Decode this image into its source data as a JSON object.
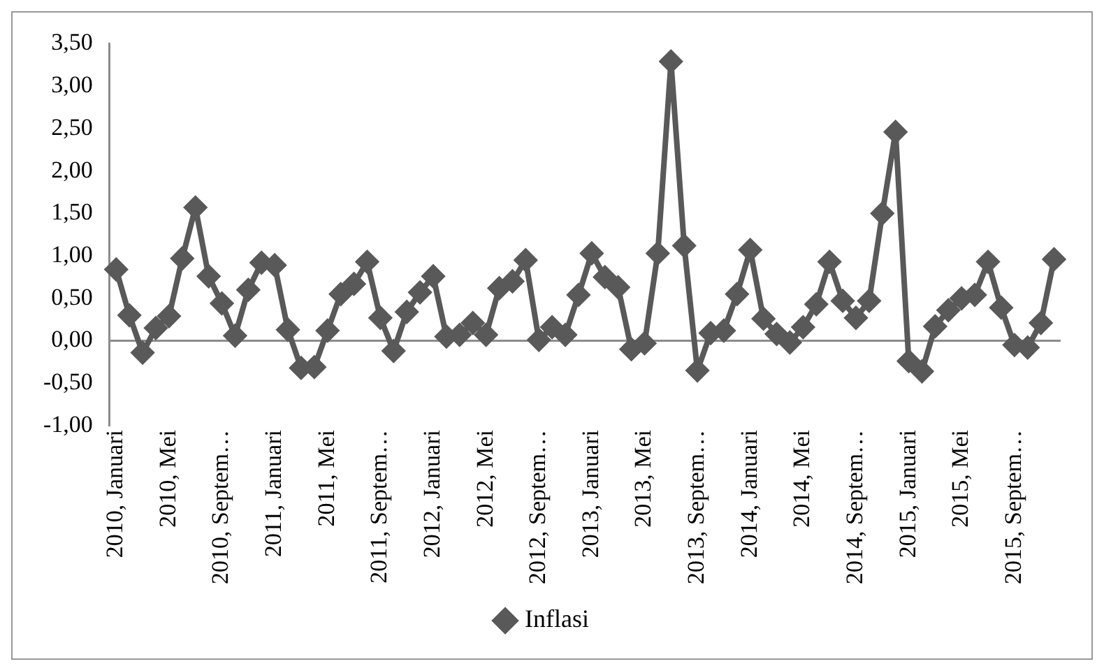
{
  "chart_data": {
    "type": "line",
    "categories": [
      "2010, Januari",
      null,
      null,
      null,
      "2010, Mei",
      null,
      null,
      null,
      "2010, Septem…",
      null,
      null,
      null,
      "2011, Januari",
      null,
      null,
      null,
      "2011, Mei",
      null,
      null,
      null,
      "2011, Septem…",
      null,
      null,
      null,
      "2012, Januari",
      null,
      null,
      null,
      "2012, Mei",
      null,
      null,
      null,
      "2012, Septem…",
      null,
      null,
      null,
      "2013, Januari",
      null,
      null,
      null,
      "2013, Mei",
      null,
      null,
      null,
      "2013, Septem…",
      null,
      null,
      null,
      "2014, Januari",
      null,
      null,
      null,
      "2014, Mei",
      null,
      null,
      null,
      "2014, Septem…",
      null,
      null,
      null,
      "2015, Januari",
      null,
      null,
      null,
      "2015, Mei",
      null,
      null,
      null,
      "2015, Septem…",
      null,
      null,
      null
    ],
    "series": [
      {
        "name": "Inflasi",
        "color": "#595959",
        "values": [
          0.84,
          0.3,
          -0.14,
          0.15,
          0.29,
          0.97,
          1.57,
          0.76,
          0.44,
          0.06,
          0.6,
          0.92,
          0.89,
          0.13,
          -0.32,
          -0.31,
          0.12,
          0.55,
          0.67,
          0.93,
          0.27,
          -0.12,
          0.34,
          0.57,
          0.76,
          0.05,
          0.07,
          0.21,
          0.07,
          0.62,
          0.7,
          0.95,
          0.01,
          0.16,
          0.07,
          0.54,
          1.03,
          0.75,
          0.63,
          -0.1,
          -0.03,
          1.03,
          3.29,
          1.12,
          -0.35,
          0.09,
          0.12,
          0.55,
          1.07,
          0.26,
          0.08,
          -0.02,
          0.16,
          0.43,
          0.93,
          0.47,
          0.27,
          0.47,
          1.5,
          2.46,
          -0.24,
          -0.36,
          0.17,
          0.36,
          0.5,
          0.54,
          0.93,
          0.39,
          -0.05,
          -0.08,
          0.21,
          0.96
        ]
      }
    ],
    "ylim": [
      -1,
      3.5
    ],
    "yticks": [
      {
        "value": -1,
        "label": "-1,00"
      },
      {
        "value": -0.5,
        "label": "-0,50"
      },
      {
        "value": 0,
        "label": "0,00"
      },
      {
        "value": 0.5,
        "label": "0,50"
      },
      {
        "value": 1,
        "label": "1,00"
      },
      {
        "value": 1.5,
        "label": "1,50"
      },
      {
        "value": 2,
        "label": "2,00"
      },
      {
        "value": 2.5,
        "label": "2,50"
      },
      {
        "value": 3,
        "label": "3,00"
      },
      {
        "value": 3.5,
        "label": "3,50"
      }
    ],
    "ref_lines": [
      {
        "axis": "y",
        "value": 0,
        "color": "#8c8c8c"
      }
    ],
    "grid": false,
    "legend": "bottom",
    "marker": "diamond",
    "line_style": "solid"
  }
}
